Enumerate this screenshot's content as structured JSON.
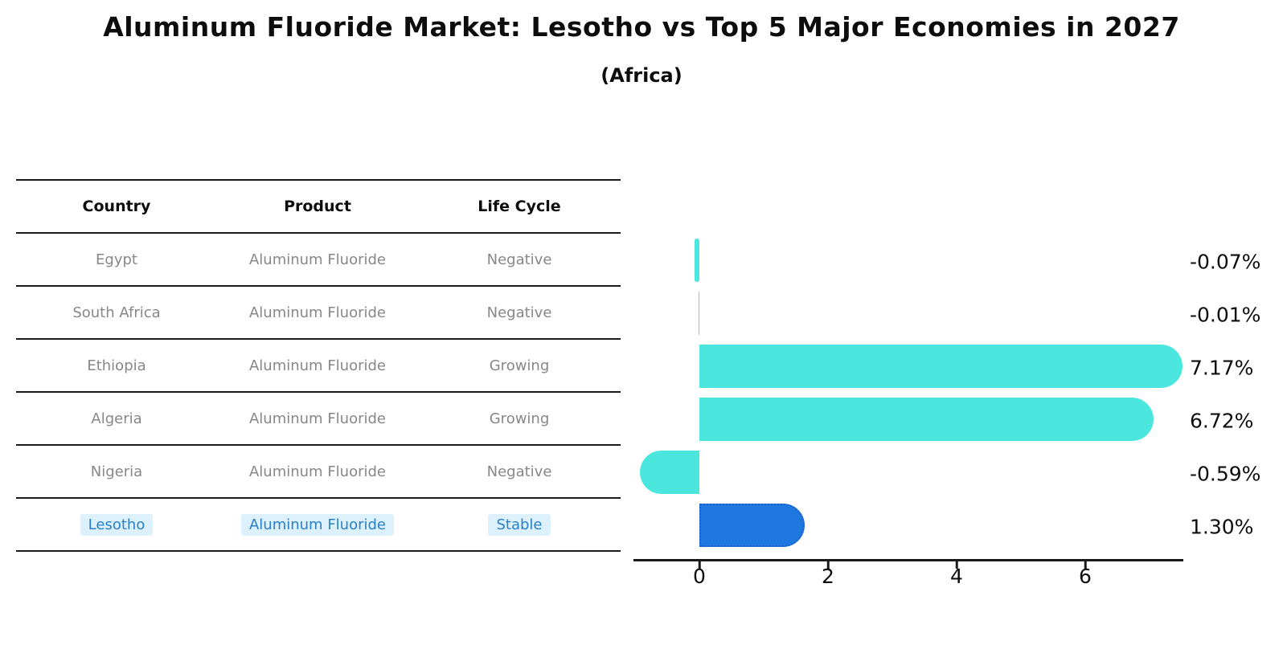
{
  "header": {
    "title": "Aluminum Fluoride Market: Lesotho vs Top 5 Major Economies in 2027",
    "subtitle": "(Africa)"
  },
  "table": {
    "headers": {
      "country": "Country",
      "product": "Product",
      "life_cycle": "Life Cycle"
    },
    "rows": [
      {
        "country": "Egypt",
        "product": "Aluminum Fluoride",
        "life_cycle": "Negative",
        "highlight": false
      },
      {
        "country": "South Africa",
        "product": "Aluminum Fluoride",
        "life_cycle": "Negative",
        "highlight": false
      },
      {
        "country": "Ethiopia",
        "product": "Aluminum Fluoride",
        "life_cycle": "Growing",
        "highlight": false
      },
      {
        "country": "Algeria",
        "product": "Aluminum Fluoride",
        "life_cycle": "Growing",
        "highlight": false
      },
      {
        "country": "Nigeria",
        "product": "Aluminum Fluoride",
        "life_cycle": "Negative",
        "highlight": false
      },
      {
        "country": "Lesotho",
        "product": "Aluminum Fluoride",
        "life_cycle": "Stable",
        "highlight": true
      }
    ]
  },
  "chart_data": {
    "type": "bar",
    "orientation": "horizontal",
    "title": "Aluminum Fluoride Market: Lesotho vs Top 5 Major Economies in 2027",
    "subtitle": "(Africa)",
    "categories": [
      "Egypt",
      "South Africa",
      "Ethiopia",
      "Algeria",
      "Nigeria",
      "Lesotho"
    ],
    "values": [
      -0.07,
      -0.01,
      7.17,
      6.72,
      -0.59,
      1.3
    ],
    "value_labels": [
      "-0.07%",
      "-0.01%",
      "7.17%",
      "6.72%",
      "-0.59%",
      "1.30%"
    ],
    "x_ticks": [
      0,
      2,
      4,
      6
    ],
    "x_tick_labels": [
      "0",
      "2",
      "4",
      "6"
    ],
    "xlim": [
      -1.05,
      7.55
    ],
    "grid": false,
    "legend": "none",
    "highlight_index": 5,
    "unit": "%"
  },
  "colors": {
    "bar_default": "#4be7df",
    "bar_highlight": "#1f78e0",
    "bar_highlight_border": "#1a5ed0",
    "highlight_text": "#2a7fc9",
    "highlight_text_bg": "#ddf1fc",
    "table_text": "#878787",
    "axis": "#1a1a1a",
    "text": "#0d0d0d",
    "background": "#ffffff"
  }
}
